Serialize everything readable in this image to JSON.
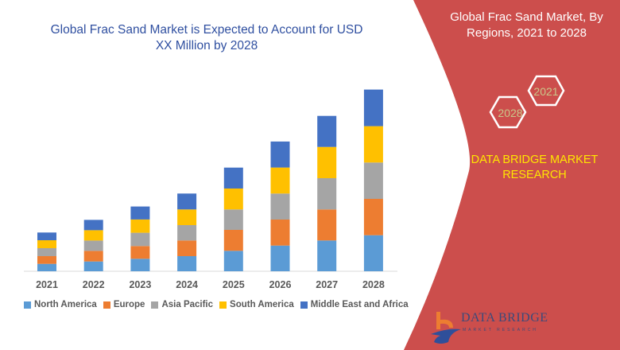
{
  "header": {
    "title": "Global Frac Sand Market is Expected to Account for USD XX Million by 2028"
  },
  "side_panel": {
    "title": "Global Frac Sand Market, By Regions, 2021 to 2028",
    "hex_start": "2021",
    "hex_end": "2028",
    "brand": "DATA BRIDGE MARKET RESEARCH",
    "logo_text": "DATA BRIDGE",
    "logo_subtext": "MARKET RESEARCH",
    "panel_color": "#cc4e4c",
    "brand_color": "#ffe600",
    "hex_text_color": "#c9c78a"
  },
  "watermark": "DATA BRIDGE MARKET RESEARCH",
  "chart_data": {
    "type": "bar",
    "stacked": true,
    "title": "Global Frac Sand Market is Expected to Account for USD XX Million by 2028",
    "xlabel": "",
    "ylabel": "",
    "y_axis_shown": false,
    "grid": false,
    "legend": "bottom",
    "categories": [
      "2021",
      "2022",
      "2023",
      "2024",
      "2025",
      "2026",
      "2027",
      "2028"
    ],
    "series": [
      {
        "name": "North America",
        "color": "#5b9bd5",
        "values": [
          9.3,
          12.3,
          15.7,
          19,
          25.7,
          32.3,
          38.7,
          45.3
        ]
      },
      {
        "name": "Europe",
        "color": "#ed7d31",
        "values": [
          9.7,
          13.3,
          16,
          19.7,
          26.3,
          32.7,
          39,
          45.7
        ]
      },
      {
        "name": "Asia Pacific",
        "color": "#a5a5a5",
        "values": [
          10,
          13,
          16.7,
          19.3,
          25.7,
          32.7,
          39.3,
          45.7
        ]
      },
      {
        "name": "South America",
        "color": "#ffc000",
        "values": [
          10,
          13,
          16.7,
          19.7,
          26.3,
          32.7,
          39.3,
          45.7
        ]
      },
      {
        "name": "Middle East and Africa",
        "color": "#4472c4",
        "values": [
          9.7,
          13,
          16.3,
          20,
          26.3,
          32.7,
          39,
          46
        ]
      }
    ]
  }
}
